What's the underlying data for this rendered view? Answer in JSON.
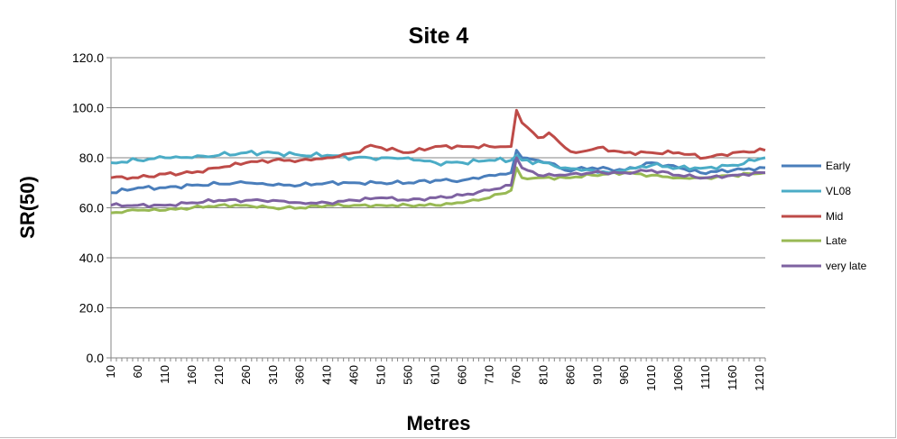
{
  "chart_data": {
    "type": "line",
    "title": "Site 4",
    "xlabel": "Metres",
    "ylabel": "SR(50)",
    "ylim": [
      0,
      120
    ],
    "yticks": [
      "0.0",
      "20.0",
      "40.0",
      "60.0",
      "80.0",
      "100.0",
      "120.0"
    ],
    "xtick_labels": [
      "10",
      "60",
      "110",
      "160",
      "210",
      "260",
      "310",
      "360",
      "410",
      "460",
      "510",
      "560",
      "610",
      "660",
      "710",
      "760",
      "810",
      "860",
      "910",
      "960",
      "1010",
      "1060",
      "1110",
      "1160",
      "1210"
    ],
    "x_start": 10,
    "x_step": 10,
    "grid": "horizontal",
    "legend_position": "right",
    "colors": {
      "Early": "#4a7ebb",
      "VL08": "#4bacc6",
      "Mid": "#be4b48",
      "Late": "#98b954",
      "very late": "#7e62a1",
      "grid": "#868686",
      "axis": "#868686"
    },
    "series": [
      {
        "name": "Early",
        "knots": [
          [
            10,
            66
          ],
          [
            60,
            68
          ],
          [
            110,
            68
          ],
          [
            160,
            69
          ],
          [
            210,
            69.5
          ],
          [
            260,
            70
          ],
          [
            310,
            69
          ],
          [
            360,
            69
          ],
          [
            410,
            70
          ],
          [
            460,
            70
          ],
          [
            510,
            70
          ],
          [
            560,
            70
          ],
          [
            610,
            71
          ],
          [
            660,
            71
          ],
          [
            710,
            73
          ],
          [
            750,
            74
          ],
          [
            760,
            83
          ],
          [
            770,
            80
          ],
          [
            800,
            79
          ],
          [
            820,
            78
          ],
          [
            850,
            75
          ],
          [
            900,
            76
          ],
          [
            960,
            75
          ],
          [
            1010,
            78
          ],
          [
            1060,
            76
          ],
          [
            1100,
            74
          ],
          [
            1160,
            75
          ],
          [
            1220,
            76
          ]
        ],
        "amp": 0.8
      },
      {
        "name": "VL08",
        "knots": [
          [
            10,
            78
          ],
          [
            60,
            79
          ],
          [
            110,
            80
          ],
          [
            160,
            80
          ],
          [
            210,
            81
          ],
          [
            260,
            82
          ],
          [
            310,
            82
          ],
          [
            360,
            81
          ],
          [
            410,
            81
          ],
          [
            460,
            80
          ],
          [
            510,
            80
          ],
          [
            560,
            80
          ],
          [
            610,
            78
          ],
          [
            660,
            78
          ],
          [
            710,
            79
          ],
          [
            750,
            79
          ],
          [
            760,
            81
          ],
          [
            770,
            79
          ],
          [
            810,
            78
          ],
          [
            850,
            76
          ],
          [
            900,
            75
          ],
          [
            940,
            74
          ],
          [
            960,
            75
          ],
          [
            1010,
            77
          ],
          [
            1060,
            76
          ],
          [
            1110,
            76
          ],
          [
            1160,
            77
          ],
          [
            1220,
            80
          ]
        ],
        "amp": 1.0
      },
      {
        "name": "Mid",
        "knots": [
          [
            10,
            72
          ],
          [
            60,
            72
          ],
          [
            110,
            73.5
          ],
          [
            160,
            74
          ],
          [
            210,
            76
          ],
          [
            260,
            78
          ],
          [
            310,
            79
          ],
          [
            360,
            79
          ],
          [
            410,
            80
          ],
          [
            460,
            82
          ],
          [
            490,
            85
          ],
          [
            510,
            84
          ],
          [
            560,
            82
          ],
          [
            610,
            84.5
          ],
          [
            660,
            84.5
          ],
          [
            710,
            84.5
          ],
          [
            750,
            84.5
          ],
          [
            760,
            99
          ],
          [
            770,
            94
          ],
          [
            800,
            88
          ],
          [
            820,
            90
          ],
          [
            850,
            84
          ],
          [
            870,
            82
          ],
          [
            910,
            84
          ],
          [
            960,
            82
          ],
          [
            1010,
            82
          ],
          [
            1060,
            82
          ],
          [
            1110,
            80
          ],
          [
            1160,
            82
          ],
          [
            1220,
            83
          ]
        ],
        "amp": 0.8
      },
      {
        "name": "Late",
        "knots": [
          [
            10,
            58
          ],
          [
            60,
            59
          ],
          [
            110,
            59
          ],
          [
            160,
            60
          ],
          [
            210,
            61
          ],
          [
            260,
            61
          ],
          [
            310,
            60
          ],
          [
            360,
            60
          ],
          [
            410,
            61
          ],
          [
            460,
            61
          ],
          [
            510,
            61
          ],
          [
            560,
            61
          ],
          [
            610,
            61
          ],
          [
            660,
            62
          ],
          [
            710,
            64
          ],
          [
            750,
            67
          ],
          [
            760,
            76
          ],
          [
            770,
            72
          ],
          [
            800,
            72
          ],
          [
            850,
            72
          ],
          [
            900,
            73
          ],
          [
            960,
            74
          ],
          [
            1010,
            73
          ],
          [
            1060,
            72
          ],
          [
            1110,
            72
          ],
          [
            1160,
            73
          ],
          [
            1220,
            74
          ]
        ],
        "amp": 0.7
      },
      {
        "name": "very late",
        "knots": [
          [
            10,
            61
          ],
          [
            60,
            61
          ],
          [
            110,
            61
          ],
          [
            160,
            62
          ],
          [
            210,
            63
          ],
          [
            260,
            63
          ],
          [
            310,
            63
          ],
          [
            360,
            62
          ],
          [
            410,
            62
          ],
          [
            460,
            63
          ],
          [
            510,
            64
          ],
          [
            560,
            63
          ],
          [
            610,
            64
          ],
          [
            660,
            65
          ],
          [
            710,
            67
          ],
          [
            750,
            69
          ],
          [
            760,
            80
          ],
          [
            770,
            76
          ],
          [
            800,
            73
          ],
          [
            850,
            73
          ],
          [
            900,
            74
          ],
          [
            960,
            74
          ],
          [
            1010,
            75
          ],
          [
            1060,
            73
          ],
          [
            1110,
            72
          ],
          [
            1160,
            73
          ],
          [
            1220,
            74
          ]
        ],
        "amp": 0.7
      }
    ]
  }
}
